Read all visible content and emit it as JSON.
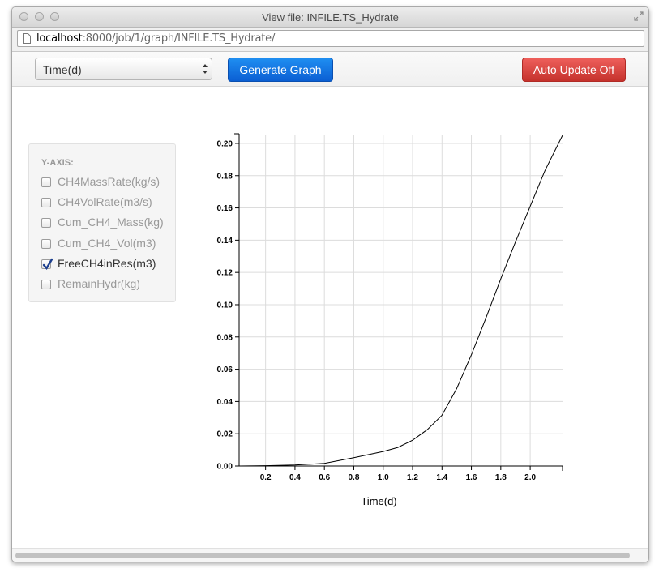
{
  "window": {
    "title": "View file: INFILE.TS_Hydrate"
  },
  "address_bar": {
    "host": "localhost",
    "path": ":8000/job/1/graph/INFILE.TS_Hydrate/"
  },
  "toolbar": {
    "x_axis_select": {
      "value": "Time(d)"
    },
    "generate_label": "Generate Graph",
    "auto_update_label": "Auto Update Off",
    "colors": {
      "primary": "#0b6fe0",
      "danger": "#d9443f"
    }
  },
  "yaxis_panel": {
    "heading": "Y-AXIS:",
    "options": [
      {
        "label": "CH4MassRate(kg/s)",
        "checked": false
      },
      {
        "label": "CH4VolRate(m3/s)",
        "checked": false
      },
      {
        "label": "Cum_CH4_Mass(kg)",
        "checked": false
      },
      {
        "label": "Cum_CH4_Vol(m3)",
        "checked": false
      },
      {
        "label": "FreeCH4inRes(m3)",
        "checked": true
      },
      {
        "label": "RemainHydr(kg)",
        "checked": false
      }
    ]
  },
  "chart_data": {
    "type": "line",
    "title": "",
    "xlabel": "Time(d)",
    "ylabel": "",
    "xlim": [
      0.02,
      2.22
    ],
    "ylim": [
      0,
      0.205
    ],
    "xticks": [
      "0.2",
      "0.4",
      "0.6",
      "0.8",
      "1.0",
      "1.2",
      "1.4",
      "1.6",
      "1.8",
      "2.0"
    ],
    "yticks": [
      "0.00",
      "0.02",
      "0.04",
      "0.06",
      "0.08",
      "0.10",
      "0.12",
      "0.14",
      "0.16",
      "0.18",
      "0.20"
    ],
    "grid": true,
    "series": [
      {
        "x": [
          0.02,
          0.2,
          0.4,
          0.6,
          0.8,
          1.0,
          1.1,
          1.2,
          1.3,
          1.4,
          1.5,
          1.6,
          1.7,
          1.8,
          1.9,
          2.0,
          2.1,
          2.22
        ],
        "y": [
          0.0,
          0.0002,
          0.0006,
          0.0016,
          0.0052,
          0.009,
          0.0115,
          0.016,
          0.0225,
          0.0315,
          0.048,
          0.069,
          0.092,
          0.116,
          0.139,
          0.161,
          0.183,
          0.205
        ],
        "color": "#000000"
      }
    ]
  }
}
